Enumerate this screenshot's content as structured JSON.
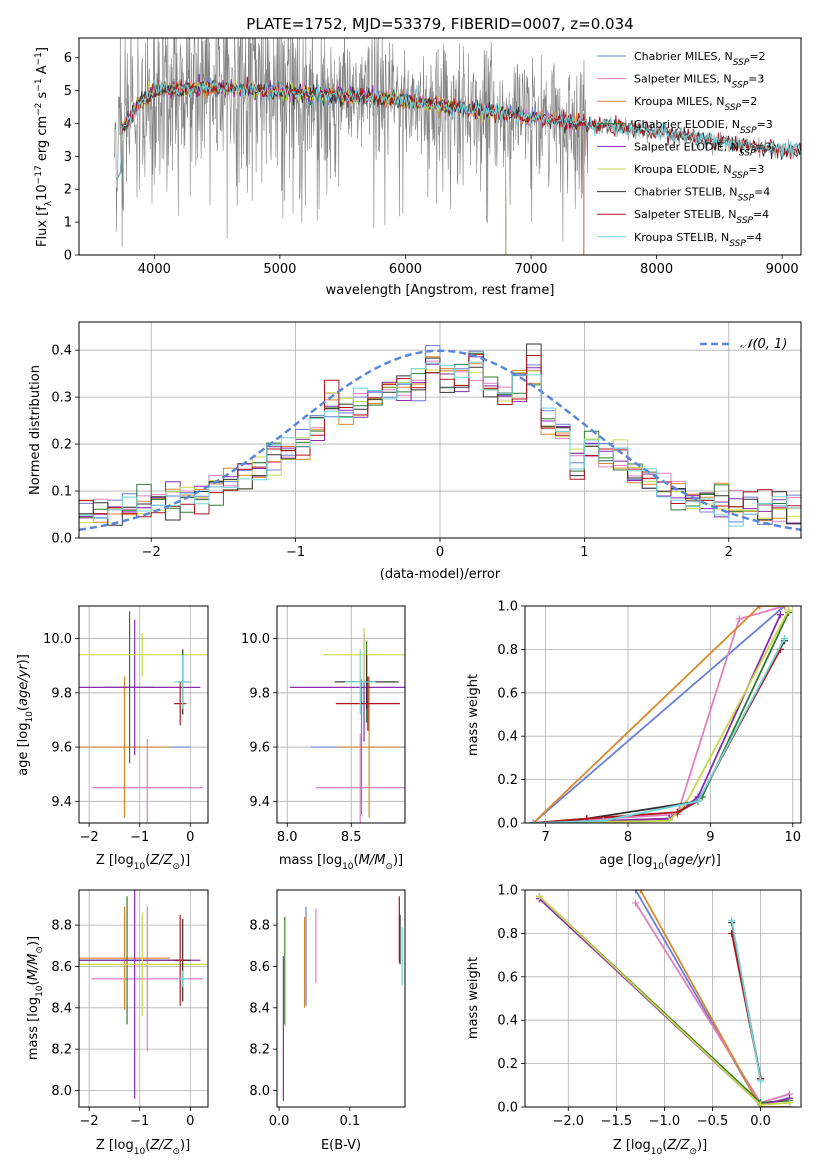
{
  "title": "PLATE=1752, MJD=53379, FIBERID=0007, z=0.034",
  "colors": {
    "Chabrier MILES": "#6a7fd8",
    "Salpeter MILES": "#e37fc0",
    "Kroupa MILES": "#d9892b",
    "Chabrier ELODIE": "#2f7d32",
    "Salpeter ELODIE": "#8a2bb0",
    "Kroupa ELODIE": "#c8d84a",
    "Chabrier STELIB": "#333333",
    "Salpeter STELIB": "#b0151b",
    "Kroupa STELIB": "#6fd3d8",
    "data": "#808080",
    "gauss": "#5b87d8",
    "grid": "#b0b0b0"
  },
  "chart_data": [
    {
      "id": "spectrum",
      "type": "line",
      "title": "PLATE=1752, MJD=53379, FIBERID=0007, z=0.034",
      "xlabel": "wavelength [Angstrom, rest frame]",
      "ylabel": "Flux [fλ10⁻¹⁷ erg cm⁻² s⁻¹ A⁻¹]",
      "xlim": [
        3400,
        9150
      ],
      "ylim": [
        0,
        6.6
      ],
      "xticks": [
        4000,
        5000,
        6000,
        7000,
        8000,
        9000
      ],
      "yticks": [
        0,
        1,
        2,
        3,
        4,
        5,
        6
      ],
      "grid": false,
      "legend_position": "upper right",
      "continuum_nodes": [
        [
          3700,
          3.5
        ],
        [
          3850,
          4.5
        ],
        [
          4000,
          5.0
        ],
        [
          4500,
          5.1
        ],
        [
          5000,
          4.95
        ],
        [
          5500,
          4.85
        ],
        [
          6000,
          4.7
        ],
        [
          6500,
          4.45
        ],
        [
          7000,
          4.2
        ],
        [
          7500,
          3.95
        ],
        [
          8000,
          3.75
        ],
        [
          8500,
          3.45
        ],
        [
          9000,
          3.2
        ]
      ],
      "model_ranges": [
        [
          3700,
          7420
        ],
        [
          3700,
          7420
        ],
        [
          3700,
          7420
        ],
        [
          3700,
          6800
        ],
        [
          3700,
          6800
        ],
        [
          3700,
          6800
        ],
        [
          3700,
          9150
        ],
        [
          3700,
          9150
        ],
        [
          3700,
          9150
        ]
      ],
      "legend": [
        {
          "name": "Chabrier MILES",
          "nssp": "2"
        },
        {
          "name": "Salpeter MILES",
          "nssp": "3"
        },
        {
          "name": "Kroupa MILES",
          "nssp": "2"
        },
        {
          "name": "Chabrier ELODIE",
          "nssp": "3"
        },
        {
          "name": "Salpeter ELODIE",
          "nssp": "3"
        },
        {
          "name": "Kroupa ELODIE",
          "nssp": "3"
        },
        {
          "name": "Chabrier STELIB",
          "nssp": "4"
        },
        {
          "name": "Salpeter STELIB",
          "nssp": "4"
        },
        {
          "name": "Kroupa STELIB",
          "nssp": "4"
        }
      ]
    },
    {
      "id": "residuals",
      "type": "bar",
      "xlabel": "(data-model)/error",
      "ylabel": "Normed distribution",
      "xlim": [
        -2.5,
        2.5
      ],
      "ylim": [
        0,
        0.46
      ],
      "xticks": [
        -2,
        -1,
        0,
        1,
        2
      ],
      "yticks": [
        0.0,
        0.1,
        0.2,
        0.3,
        0.4
      ],
      "grid": true,
      "bin_width": 0.1,
      "bin_start": -2.5,
      "legend": "𝒩(0, 1)",
      "legend_position": "upper right",
      "gaussian": {
        "mean": 0,
        "sigma": 1
      },
      "bump_bins": [
        [
          -0.75,
          0.04
        ],
        [
          -0.05,
          0.03
        ],
        [
          0.25,
          0.03
        ],
        [
          0.65,
          0.08
        ],
        [
          0.55,
          0.05
        ],
        [
          1.25,
          0.03
        ]
      ]
    },
    {
      "id": "age_vs_Z",
      "type": "scatter",
      "xlabel": "Z [log₁₀(Z/Z⊙)]",
      "ylabel": "age  [log₁₀(age/yr)]",
      "xlim": [
        -2.2,
        0.35
      ],
      "ylim": [
        9.32,
        10.12
      ],
      "xticks": [
        -2,
        -1,
        0
      ],
      "yticks": [
        9.4,
        9.6,
        9.8,
        10.0
      ],
      "grid": true,
      "points": [
        {
          "x": -1.3,
          "y": 9.6,
          "xe": 1.3,
          "ye": 0.25
        },
        {
          "x": -0.85,
          "y": 9.45,
          "xe": 1.1,
          "ye": 0.18
        },
        {
          "x": -1.3,
          "y": 9.6,
          "xe": 0.9,
          "ye": 0.26
        },
        {
          "x": -1.2,
          "y": 9.82,
          "xe": 0.5,
          "ye": 0.28
        },
        {
          "x": -1.1,
          "y": 9.82,
          "xe": 1.3,
          "ye": 0.25
        },
        {
          "x": -0.95,
          "y": 9.94,
          "xe": 1.3,
          "ye": 0.08
        },
        {
          "x": -0.15,
          "y": 9.84,
          "xe": 0.12,
          "ye": 0.12
        },
        {
          "x": -0.2,
          "y": 9.76,
          "xe": 0.12,
          "ye": 0.08
        },
        {
          "x": -0.15,
          "y": 9.84,
          "xe": 0.18,
          "ye": 0.1
        }
      ]
    },
    {
      "id": "age_vs_mass",
      "type": "scatter",
      "xlabel": "mass [log₁₀(M/M⊙)]",
      "xlim": [
        7.92,
        8.92
      ],
      "ylim": [
        9.32,
        10.12
      ],
      "xticks": [
        8.0,
        8.5
      ],
      "yticks": [
        9.4,
        9.6,
        9.8,
        10.0
      ],
      "grid": true,
      "points": [
        {
          "x": 8.58,
          "y": 9.6,
          "xe": 0.4,
          "ye": 0.25
        },
        {
          "x": 8.57,
          "y": 9.45,
          "xe": 0.35,
          "ye": 0.2
        },
        {
          "x": 8.64,
          "y": 9.6,
          "xe": 0.25,
          "ye": 0.26
        },
        {
          "x": 8.62,
          "y": 9.84,
          "xe": 0.22,
          "ye": 0.15
        },
        {
          "x": 8.6,
          "y": 9.82,
          "xe": 0.58,
          "ye": 0.2
        },
        {
          "x": 8.6,
          "y": 9.94,
          "xe": 0.32,
          "ye": 0.1
        },
        {
          "x": 8.62,
          "y": 9.84,
          "xe": 0.25,
          "ye": 0.1
        },
        {
          "x": 8.63,
          "y": 9.76,
          "xe": 0.25,
          "ye": 0.1
        },
        {
          "x": 8.57,
          "y": 9.84,
          "xe": 0.12,
          "ye": 0.12
        }
      ]
    },
    {
      "id": "cumulative_weight_age",
      "type": "line",
      "xlabel": "age  [log₁₀(age/yr)]",
      "ylabel": "mass weight",
      "xlim": [
        6.75,
        10.1
      ],
      "ylim": [
        0,
        1
      ],
      "xticks": [
        7,
        8,
        9,
        10
      ],
      "yticks": [
        0.0,
        0.2,
        0.4,
        0.6,
        0.8,
        1.0
      ],
      "grid": true,
      "series": [
        {
          "name": "Chabrier MILES",
          "x": [
            6.85,
            9.9
          ],
          "y": [
            0.0,
            1.0
          ]
        },
        {
          "name": "Salpeter MILES",
          "x": [
            6.85,
            8.6,
            9.35,
            9.9
          ],
          "y": [
            0.0,
            0.04,
            0.94,
            1.0
          ]
        },
        {
          "name": "Kroupa MILES",
          "x": [
            6.85,
            9.6,
            9.9
          ],
          "y": [
            0.0,
            1.0,
            1.0
          ]
        },
        {
          "name": "Chabrier ELODIE",
          "x": [
            6.85,
            8.5,
            8.9,
            9.95
          ],
          "y": [
            0.0,
            0.02,
            0.12,
            0.97
          ]
        },
        {
          "name": "Salpeter ELODIE",
          "x": [
            6.85,
            8.5,
            8.85,
            9.85
          ],
          "y": [
            0.0,
            0.02,
            0.12,
            0.96
          ]
        },
        {
          "name": "Kroupa ELODIE",
          "x": [
            6.85,
            8.5,
            8.7,
            9.95
          ],
          "y": [
            0.0,
            0.01,
            0.09,
            0.98
          ]
        },
        {
          "name": "Chabrier STELIB",
          "x": [
            6.85,
            7.5,
            8.85,
            9.9
          ],
          "y": [
            0.0,
            0.02,
            0.1,
            0.84
          ]
        },
        {
          "name": "Salpeter STELIB",
          "x": [
            6.85,
            7.5,
            8.6,
            8.85,
            9.85
          ],
          "y": [
            0.0,
            0.02,
            0.05,
            0.1,
            0.8
          ]
        },
        {
          "name": "Kroupa STELIB",
          "x": [
            6.85,
            7.7,
            8.85,
            9.9
          ],
          "y": [
            0.0,
            0.01,
            0.1,
            0.85
          ]
        }
      ]
    },
    {
      "id": "mass_vs_Z",
      "type": "scatter",
      "xlabel": "Z [log₁₀(Z/Z⊙)]",
      "ylabel": "mass [log₁₀(M/M⊙)]",
      "xlim": [
        -2.2,
        0.35
      ],
      "ylim": [
        7.92,
        8.97
      ],
      "xticks": [
        -2,
        -1,
        0
      ],
      "yticks": [
        8.0,
        8.2,
        8.4,
        8.6,
        8.8
      ],
      "grid": true,
      "points": [
        {
          "x": -1.3,
          "y": 8.63,
          "xe": 1.3,
          "ye": 0.22
        },
        {
          "x": -0.85,
          "y": 8.54,
          "xe": 1.1,
          "ye": 0.35
        },
        {
          "x": -1.3,
          "y": 8.64,
          "xe": 0.9,
          "ye": 0.25
        },
        {
          "x": -1.25,
          "y": 8.63,
          "xe": 1.0,
          "ye": 0.31
        },
        {
          "x": -1.1,
          "y": 8.63,
          "xe": 1.3,
          "ye": 0.67
        },
        {
          "x": -0.95,
          "y": 8.61,
          "xe": 1.3,
          "ye": 0.25
        },
        {
          "x": -0.15,
          "y": 8.63,
          "xe": 0.15,
          "ye": 0.2
        },
        {
          "x": -0.2,
          "y": 8.63,
          "xe": 0.12,
          "ye": 0.22
        },
        {
          "x": -0.15,
          "y": 8.54,
          "xe": 0.1,
          "ye": 0.04
        }
      ]
    },
    {
      "id": "mass_vs_ebv",
      "type": "scatter",
      "xlabel": "E(B-V)",
      "xlim": [
        -0.003,
        0.178
      ],
      "ylim": [
        7.92,
        8.97
      ],
      "xticks": [
        0.0,
        0.1
      ],
      "yticks": [
        8.0,
        8.2,
        8.4,
        8.6,
        8.8
      ],
      "grid": false,
      "points": [
        {
          "x": 0.038,
          "y": 8.65,
          "ye": 0.24
        },
        {
          "x": 0.052,
          "y": 8.7,
          "ye": 0.18
        },
        {
          "x": 0.036,
          "y": 8.62,
          "ye": 0.22
        },
        {
          "x": 0.008,
          "y": 8.58,
          "ye": 0.26
        },
        {
          "x": 0.006,
          "y": 8.3,
          "ye": 0.35
        },
        {
          "x": 0.009,
          "y": 8.56,
          "ye": 0.25
        },
        {
          "x": 0.171,
          "y": 8.73,
          "ye": 0.12
        },
        {
          "x": 0.17,
          "y": 8.78,
          "ye": 0.16
        },
        {
          "x": 0.174,
          "y": 8.65,
          "ye": 0.14
        }
      ]
    },
    {
      "id": "cumulative_weight_Z",
      "type": "line",
      "xlabel": "Z [log₁₀(Z/Z⊙)]",
      "ylabel": "mass weight",
      "xlim": [
        -2.45,
        0.42
      ],
      "ylim": [
        0,
        1
      ],
      "xticks": [
        -2.0,
        -1.5,
        -1.0,
        -0.5,
        0.0
      ],
      "yticks": [
        0.0,
        0.2,
        0.4,
        0.6,
        0.8,
        1.0
      ],
      "grid": true,
      "series": [
        {
          "name": "Chabrier MILES",
          "x": [
            -1.3,
            0.0,
            0.3
          ],
          "y": [
            1.0,
            0.0,
            0.0
          ]
        },
        {
          "name": "Salpeter MILES",
          "x": [
            -1.3,
            0.0,
            0.3
          ],
          "y": [
            0.94,
            0.02,
            0.06
          ]
        },
        {
          "name": "Kroupa MILES",
          "x": [
            -1.25,
            0.0,
            0.3
          ],
          "y": [
            1.0,
            0.0,
            0.0
          ]
        },
        {
          "name": "Chabrier ELODIE",
          "x": [
            -2.3,
            0.0,
            0.3
          ],
          "y": [
            0.97,
            0.02,
            0.03
          ]
        },
        {
          "name": "Salpeter ELODIE",
          "x": [
            -2.3,
            0.0,
            0.3
          ],
          "y": [
            0.96,
            0.01,
            0.04
          ]
        },
        {
          "name": "Kroupa ELODIE",
          "x": [
            -2.3,
            0.0,
            0.3
          ],
          "y": [
            0.97,
            0.01,
            0.02
          ]
        },
        {
          "name": "Chabrier STELIB",
          "x": [
            -0.3,
            0.0
          ],
          "y": [
            0.85,
            0.13
          ]
        },
        {
          "name": "Salpeter STELIB",
          "x": [
            -0.3,
            0.0
          ],
          "y": [
            0.8,
            0.13
          ]
        },
        {
          "name": "Kroupa STELIB",
          "x": [
            -0.3,
            0.0
          ],
          "y": [
            0.86,
            0.12
          ]
        }
      ]
    }
  ]
}
